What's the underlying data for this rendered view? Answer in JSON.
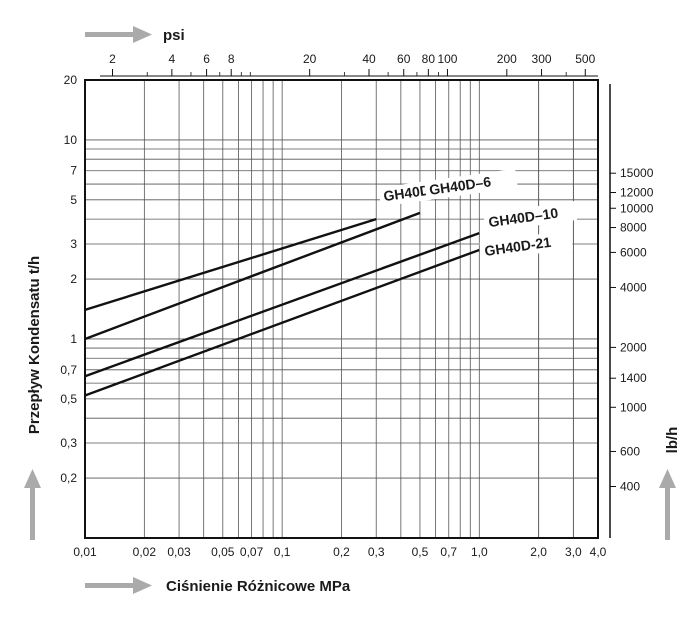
{
  "chart_data": {
    "type": "line",
    "xlabel": "Ciśnienie Różnicowe MPa",
    "ylabel": "Przepływ Kondensatu t/h",
    "top_axis_label": "psi",
    "right_axis_label": "lb/h",
    "x_scale": "log",
    "y_scale": "log",
    "xlim": [
      0.01,
      4.0
    ],
    "ylim": [
      0.1,
      20
    ],
    "grid": true,
    "x_ticks": [
      {
        "value": 0.01,
        "label": "0,01"
      },
      {
        "value": 0.02,
        "label": "0,02"
      },
      {
        "value": 0.03,
        "label": "0,03"
      },
      {
        "value": 0.05,
        "label": "0,05"
      },
      {
        "value": 0.07,
        "label": "0,07"
      },
      {
        "value": 0.1,
        "label": "0,1"
      },
      {
        "value": 0.2,
        "label": "0,2"
      },
      {
        "value": 0.3,
        "label": "0,3"
      },
      {
        "value": 0.5,
        "label": "0,5"
      },
      {
        "value": 0.7,
        "label": "0,7"
      },
      {
        "value": 1.0,
        "label": "1,0"
      },
      {
        "value": 2.0,
        "label": "2,0"
      },
      {
        "value": 3.0,
        "label": "3,0"
      },
      {
        "value": 4.0,
        "label": "4,0"
      }
    ],
    "y_ticks": [
      {
        "value": 0.2,
        "label": "0,2"
      },
      {
        "value": 0.3,
        "label": "0,3"
      },
      {
        "value": 0.5,
        "label": "0,5"
      },
      {
        "value": 0.7,
        "label": "0,7"
      },
      {
        "value": 1,
        "label": "1"
      },
      {
        "value": 2,
        "label": "2"
      },
      {
        "value": 3,
        "label": "3"
      },
      {
        "value": 5,
        "label": "5"
      },
      {
        "value": 7,
        "label": "7"
      },
      {
        "value": 10,
        "label": "10"
      },
      {
        "value": 20,
        "label": "20"
      }
    ],
    "top_ticks": [
      {
        "value": 2,
        "label": "2"
      },
      {
        "value": 4,
        "label": "4"
      },
      {
        "value": 6,
        "label": "6"
      },
      {
        "value": 8,
        "label": "8"
      },
      {
        "value": 20,
        "label": "20"
      },
      {
        "value": 40,
        "label": "40"
      },
      {
        "value": 60,
        "label": "60"
      },
      {
        "value": 80,
        "label": "80"
      },
      {
        "value": 100,
        "label": "100"
      },
      {
        "value": 200,
        "label": "200"
      },
      {
        "value": 300,
        "label": "300"
      },
      {
        "value": 500,
        "label": "500"
      }
    ],
    "right_ticks": [
      {
        "value": 400,
        "label": "400"
      },
      {
        "value": 600,
        "label": "600"
      },
      {
        "value": 1000,
        "label": "1000"
      },
      {
        "value": 1400,
        "label": "1400"
      },
      {
        "value": 2000,
        "label": "2000"
      },
      {
        "value": 4000,
        "label": "4000"
      },
      {
        "value": 6000,
        "label": "6000"
      },
      {
        "value": 8000,
        "label": "8000"
      },
      {
        "value": 10000,
        "label": "10000"
      },
      {
        "value": 12000,
        "label": "12000"
      },
      {
        "value": 15000,
        "label": "15000"
      }
    ],
    "series": [
      {
        "name": "GH40D–2",
        "x": [
          0.01,
          0.3
        ],
        "y": [
          1.4,
          4.0
        ]
      },
      {
        "name": "GH40D–6",
        "x": [
          0.01,
          0.5
        ],
        "y": [
          1.0,
          4.3
        ]
      },
      {
        "name": "GH40D–10",
        "x": [
          0.01,
          1.0
        ],
        "y": [
          0.65,
          3.4
        ]
      },
      {
        "name": "GH40D-21",
        "x": [
          0.01,
          1.0
        ],
        "y": [
          0.52,
          2.8
        ]
      }
    ],
    "colors": {
      "line": "#111111",
      "grid": "#555555",
      "arrow": "#aaaaaa"
    }
  }
}
